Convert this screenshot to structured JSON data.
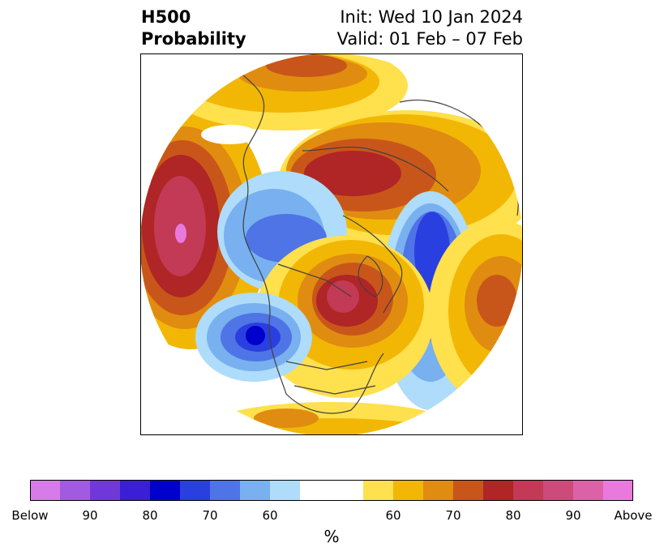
{
  "header": {
    "title_line1": "H500",
    "title_line2": "Probability",
    "init_text": "Init: Wed 10 Jan 2024",
    "valid_text": "Valid: 01 Feb – 07 Feb"
  },
  "map": {
    "projection": "north polar stereographic",
    "boundaries": "coastlines and country/state borders"
  },
  "colorbar": {
    "below_colors": [
      "#d77be8",
      "#a05be0",
      "#7038d8",
      "#3b1fd6",
      "#0000cc",
      "#2a3fe0",
      "#4e74e6",
      "#78b0f0",
      "#aedcfa"
    ],
    "neutral_color": "#ffffff",
    "above_colors": [
      "#ffe04d",
      "#f2b705",
      "#e08c10",
      "#c8561a",
      "#b02525",
      "#c23a55",
      "#cc4b7a",
      "#dc62a8",
      "#e87ade"
    ],
    "tick_labels": [
      "Below",
      "90",
      "80",
      "70",
      "60",
      "60",
      "70",
      "80",
      "90",
      "Above"
    ],
    "unit": "%"
  }
}
